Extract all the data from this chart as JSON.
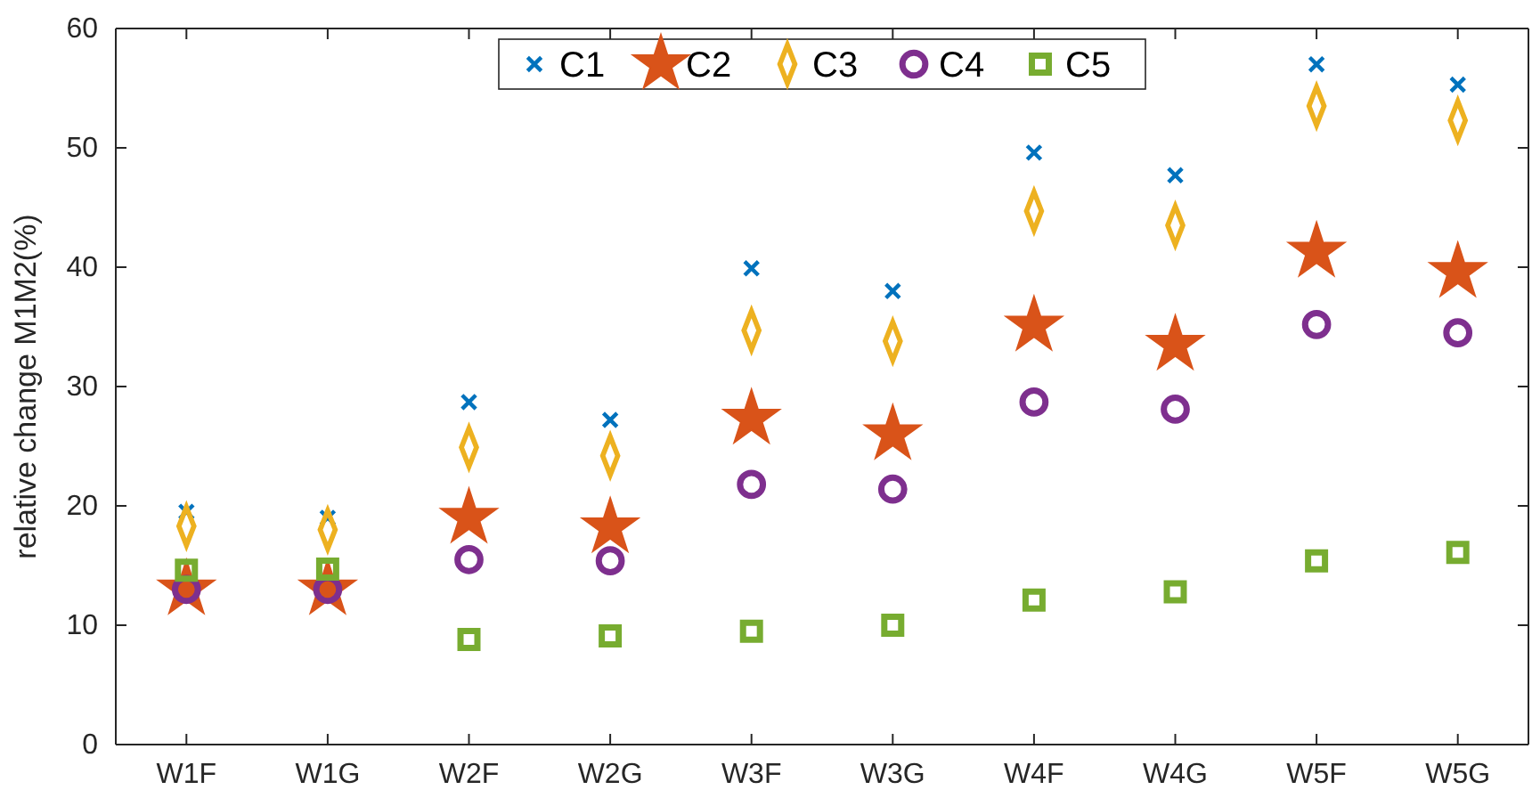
{
  "chart_data": {
    "type": "scatter",
    "ylabel": "relative change M1M2(%)",
    "categories": [
      "W1F",
      "W1G",
      "W2F",
      "W2G",
      "W3F",
      "W3G",
      "W4F",
      "W4G",
      "W5F",
      "W5G"
    ],
    "ylim": [
      0,
      60
    ],
    "yticks": [
      0,
      10,
      20,
      30,
      40,
      50,
      60
    ],
    "grid": false,
    "legend": "top",
    "series": [
      {
        "name": "C1",
        "color": "#0072bd",
        "marker": "cross",
        "values": [
          19.5,
          19,
          28.7,
          27.2,
          39.9,
          38,
          49.6,
          47.7,
          57,
          55.3
        ]
      },
      {
        "name": "C2",
        "color": "#d95319",
        "marker": "star",
        "values": [
          13,
          13,
          19,
          18.2,
          27.3,
          26,
          35.1,
          33.5,
          41.3,
          39.6
        ]
      },
      {
        "name": "C3",
        "color": "#edb120",
        "marker": "diamond",
        "values": [
          18.3,
          18,
          24.9,
          24.2,
          34.7,
          33.8,
          44.7,
          43.5,
          53.5,
          52.3
        ]
      },
      {
        "name": "C4",
        "color": "#7e2f8e",
        "marker": "circle",
        "values": [
          13,
          13,
          15.5,
          15.4,
          21.8,
          21.4,
          28.7,
          28.1,
          35.2,
          34.5
        ]
      },
      {
        "name": "C5",
        "color": "#77ac30",
        "marker": "square",
        "values": [
          14.6,
          14.7,
          8.8,
          9.1,
          9.5,
          10,
          12.1,
          12.8,
          15.4,
          16.1
        ]
      }
    ]
  }
}
